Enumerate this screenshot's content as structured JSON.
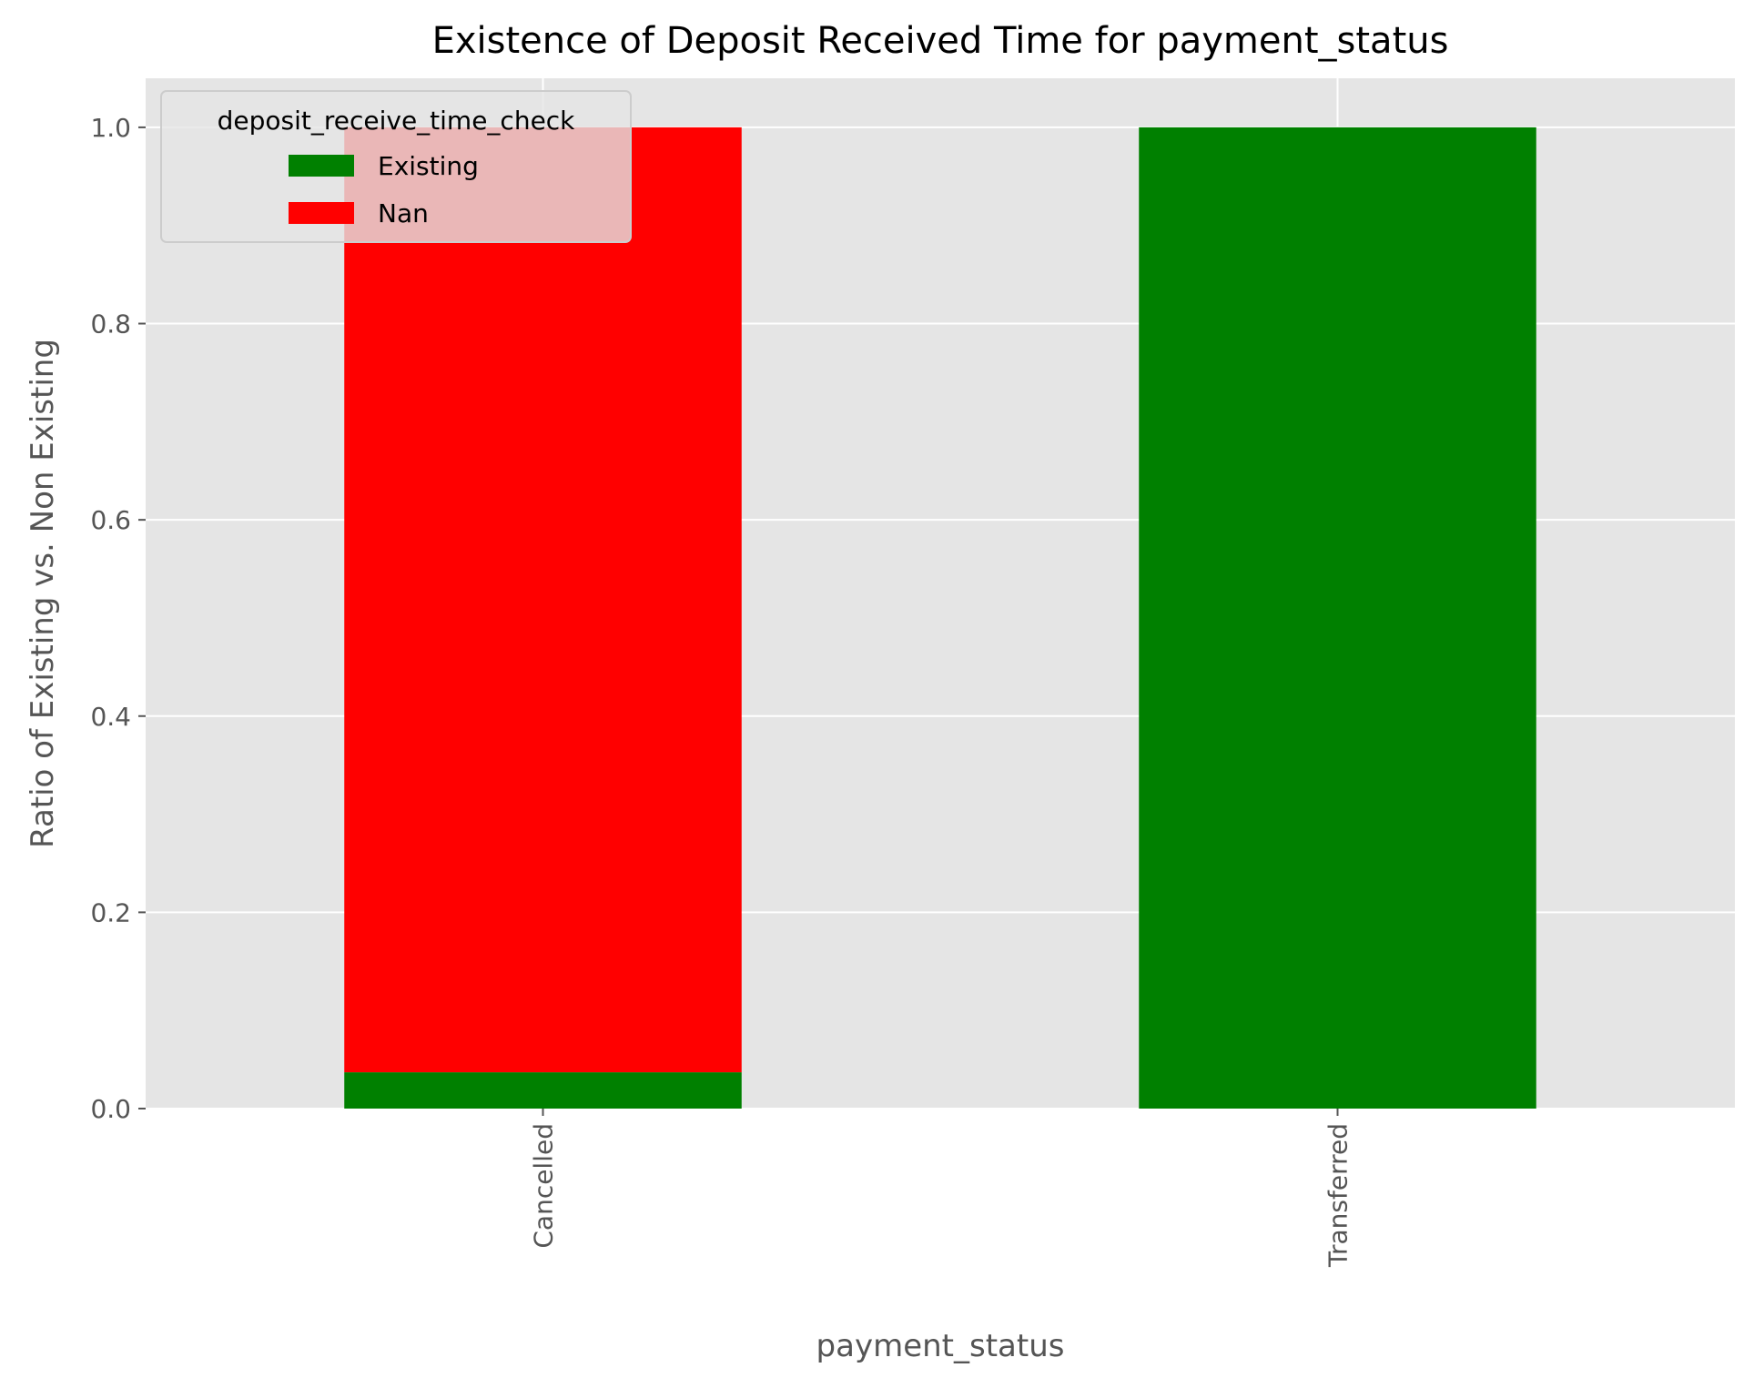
{
  "chart_data": {
    "type": "bar",
    "stacked": true,
    "title": "Existence of Deposit Received Time for payment_status",
    "xlabel": "payment_status",
    "ylabel": "Ratio of Existing vs. Non Existing",
    "categories": [
      "Cancelled",
      "Transferred"
    ],
    "series": [
      {
        "name": "Existing",
        "values": [
          0.037,
          1.0
        ],
        "color": "#008000"
      },
      {
        "name": "Nan",
        "values": [
          0.963,
          0.0
        ],
        "color": "#ff0000"
      }
    ],
    "ylim": [
      0,
      1.05
    ],
    "yticks": [
      0.0,
      0.2,
      0.4,
      0.6,
      0.8,
      1.0
    ],
    "ytick_labels": [
      "0.0",
      "0.2",
      "0.4",
      "0.6",
      "0.8",
      "1.0"
    ],
    "grid": true,
    "legend": {
      "title": "deposit_receive_time_check",
      "placement": "top-left"
    },
    "style": {
      "plot_background": "#e5e5e5",
      "grid_color": "#ffffff",
      "text_color": "#555555",
      "title_color": "#000000"
    }
  }
}
